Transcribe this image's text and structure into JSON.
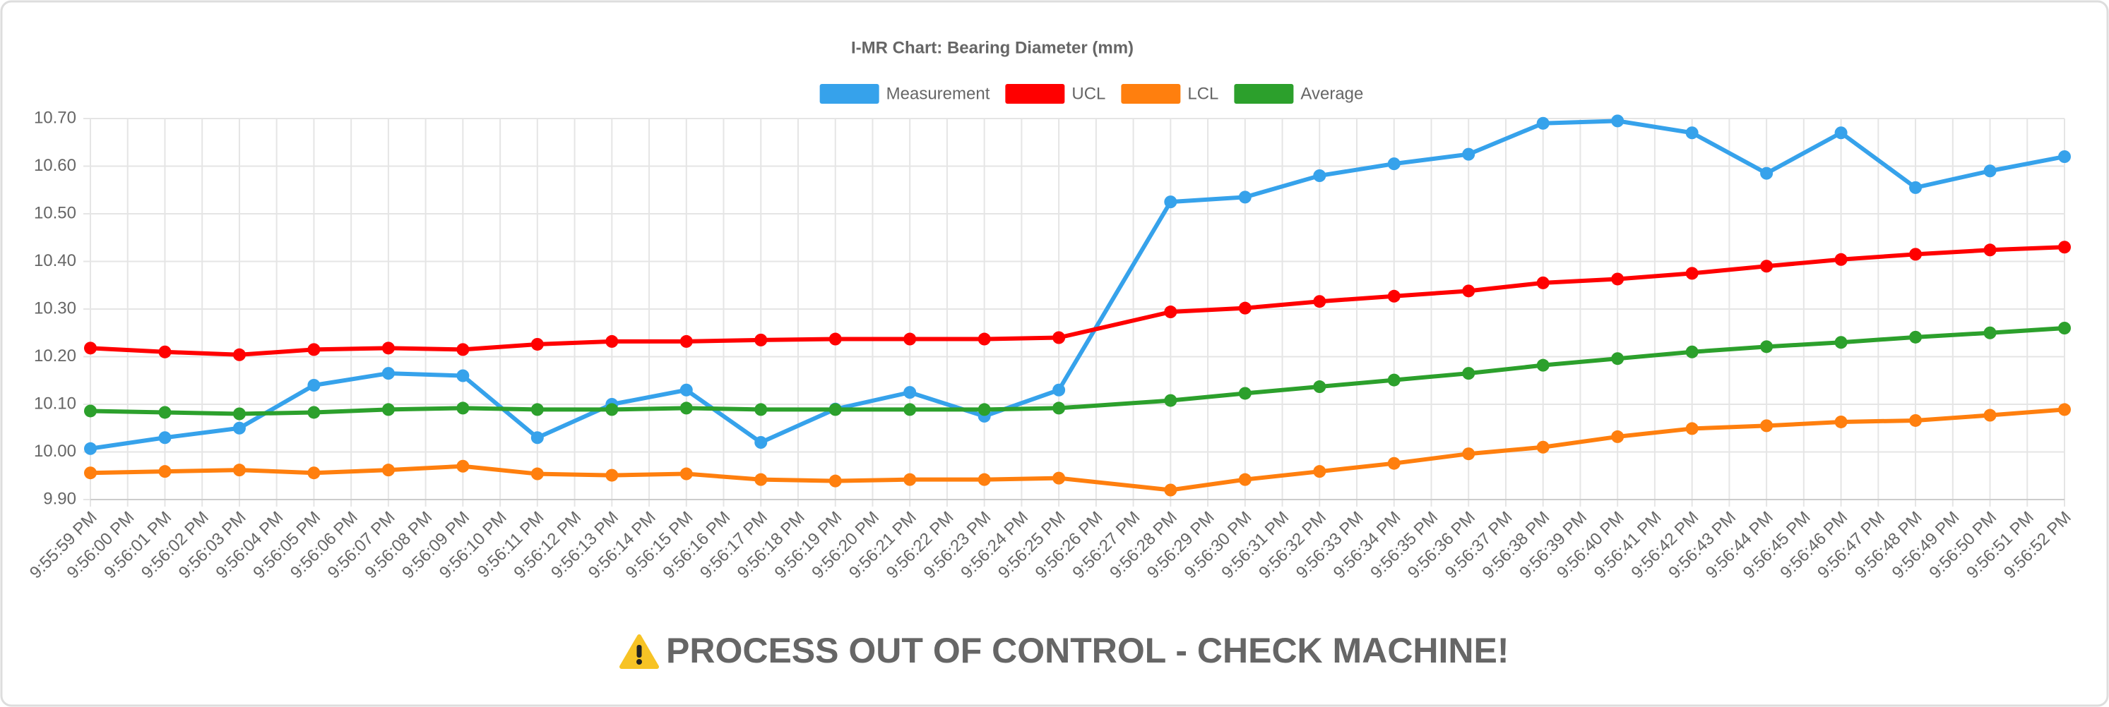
{
  "chart_data": {
    "type": "line",
    "title": "I-MR Chart: Bearing Diameter (mm)",
    "x": [
      "9:55:59 PM",
      "9:56:01 PM",
      "9:56:03 PM",
      "9:56:05 PM",
      "9:56:07 PM",
      "9:56:09 PM",
      "9:56:11 PM",
      "9:56:13 PM",
      "9:56:15 PM",
      "9:56:17 PM",
      "9:56:19 PM",
      "9:56:21 PM",
      "9:56:23 PM",
      "9:56:25 PM",
      "9:56:28 PM",
      "9:56:30 PM",
      "9:56:32 PM",
      "9:56:34 PM",
      "9:56:36 PM",
      "9:56:38 PM",
      "9:56:40 PM",
      "9:56:42 PM",
      "9:56:44 PM",
      "9:56:46 PM",
      "9:56:48 PM",
      "9:56:50 PM",
      "9:56:52 PM"
    ],
    "xticks": [
      "9:55:59 PM",
      "9:56:00 PM",
      "9:56:01 PM",
      "9:56:02 PM",
      "9:56:03 PM",
      "9:56:04 PM",
      "9:56:05 PM",
      "9:56:06 PM",
      "9:56:07 PM",
      "9:56:08 PM",
      "9:56:09 PM",
      "9:56:10 PM",
      "9:56:11 PM",
      "9:56:12 PM",
      "9:56:13 PM",
      "9:56:14 PM",
      "9:56:15 PM",
      "9:56:16 PM",
      "9:56:17 PM",
      "9:56:18 PM",
      "9:56:19 PM",
      "9:56:20 PM",
      "9:56:21 PM",
      "9:56:22 PM",
      "9:56:23 PM",
      "9:56:24 PM",
      "9:56:25 PM",
      "9:56:26 PM",
      "9:56:27 PM",
      "9:56:28 PM",
      "9:56:29 PM",
      "9:56:30 PM",
      "9:56:31 PM",
      "9:56:32 PM",
      "9:56:33 PM",
      "9:56:34 PM",
      "9:56:35 PM",
      "9:56:36 PM",
      "9:56:37 PM",
      "9:56:38 PM",
      "9:56:39 PM",
      "9:56:40 PM",
      "9:56:41 PM",
      "9:56:42 PM",
      "9:56:43 PM",
      "9:56:44 PM",
      "9:56:45 PM",
      "9:56:46 PM",
      "9:56:47 PM",
      "9:56:48 PM",
      "9:56:49 PM",
      "9:56:50 PM",
      "9:56:51 PM",
      "9:56:52 PM"
    ],
    "ylim": [
      9.9,
      10.7
    ],
    "yticks": [
      {
        "value": 9.9,
        "label": "9.90"
      },
      {
        "value": 10,
        "label": "10.00"
      },
      {
        "value": 10.1,
        "label": "10.10"
      },
      {
        "value": 10.2,
        "label": "10.20"
      },
      {
        "value": 10.3,
        "label": "10.30"
      },
      {
        "value": 10.4,
        "label": "10.40"
      },
      {
        "value": 10.5,
        "label": "10.50"
      },
      {
        "value": 10.6,
        "label": "10.60"
      },
      {
        "value": 10.7,
        "label": "10.70"
      }
    ],
    "grid": true,
    "legend": "top",
    "series": [
      {
        "name": "Measurement",
        "color": "#36a2eb",
        "values": [
          10.007,
          10.03,
          10.05,
          10.14,
          10.165,
          10.16,
          10.03,
          10.1,
          10.13,
          10.02,
          10.09,
          10.125,
          10.075,
          10.13,
          10.525,
          10.535,
          10.58,
          10.605,
          10.625,
          10.69,
          10.695,
          10.67,
          10.585,
          10.67,
          10.555,
          10.59,
          10.62
        ]
      },
      {
        "name": "UCL",
        "color": "#ff0000",
        "values": [
          10.218,
          10.21,
          10.204,
          10.215,
          10.218,
          10.215,
          10.226,
          10.232,
          10.232,
          10.235,
          10.237,
          10.237,
          10.237,
          10.24,
          10.294,
          10.302,
          10.316,
          10.327,
          10.338,
          10.355,
          10.363,
          10.375,
          10.39,
          10.404,
          10.415,
          10.424,
          10.43
        ]
      },
      {
        "name": "LCL",
        "color": "#ff7f0e",
        "values": [
          9.956,
          9.959,
          9.962,
          9.956,
          9.962,
          9.97,
          9.954,
          9.951,
          9.954,
          9.942,
          9.939,
          9.942,
          9.942,
          9.945,
          9.92,
          9.942,
          9.959,
          9.976,
          9.996,
          10.01,
          10.032,
          10.049,
          10.055,
          10.063,
          10.066,
          10.077,
          10.089
        ]
      },
      {
        "name": "Average",
        "color": "#2ca02c",
        "values": [
          10.086,
          10.083,
          10.08,
          10.083,
          10.089,
          10.092,
          10.089,
          10.089,
          10.092,
          10.089,
          10.089,
          10.089,
          10.089,
          10.092,
          10.108,
          10.123,
          10.137,
          10.151,
          10.165,
          10.182,
          10.196,
          10.21,
          10.221,
          10.23,
          10.241,
          10.25,
          10.26
        ]
      }
    ]
  },
  "alert": "PROCESS OUT OF CONTROL - CHECK MACHINE!"
}
